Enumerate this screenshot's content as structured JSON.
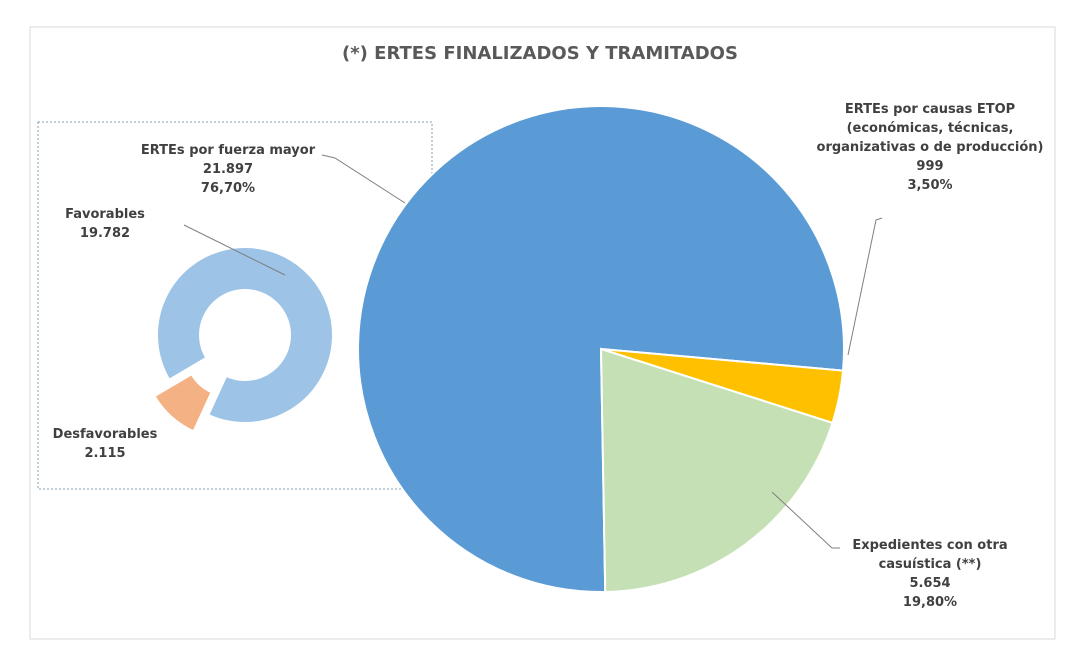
{
  "chart_data": [
    {
      "type": "pie",
      "title": "(*) ERTES FINALIZADOS Y TRAMITADOS",
      "categories": [
        "ERTEs por fuerza mayor",
        "ERTEs por causas ETOP\n(económicas, técnicas,\norganizativas o de producción)",
        "Expedientes con otra\ncasuística (**)"
      ],
      "values": [
        21897,
        999,
        5654
      ],
      "value_labels": [
        "21.897",
        "999",
        "5.654"
      ],
      "percentages": [
        76.7,
        3.5,
        19.8
      ],
      "percentage_labels": [
        "76,70%",
        "3,50%",
        "19,80%"
      ],
      "colors": [
        "#5b9bd5",
        "#ffc000",
        "#c5e0b4"
      ]
    },
    {
      "type": "donut",
      "categories": [
        "Favorables",
        "Desfavorables"
      ],
      "values": [
        19782,
        2115
      ],
      "value_labels": [
        "19.782",
        "2.115"
      ],
      "colors": [
        "#9dc3e6",
        "#f4b183"
      ]
    }
  ]
}
